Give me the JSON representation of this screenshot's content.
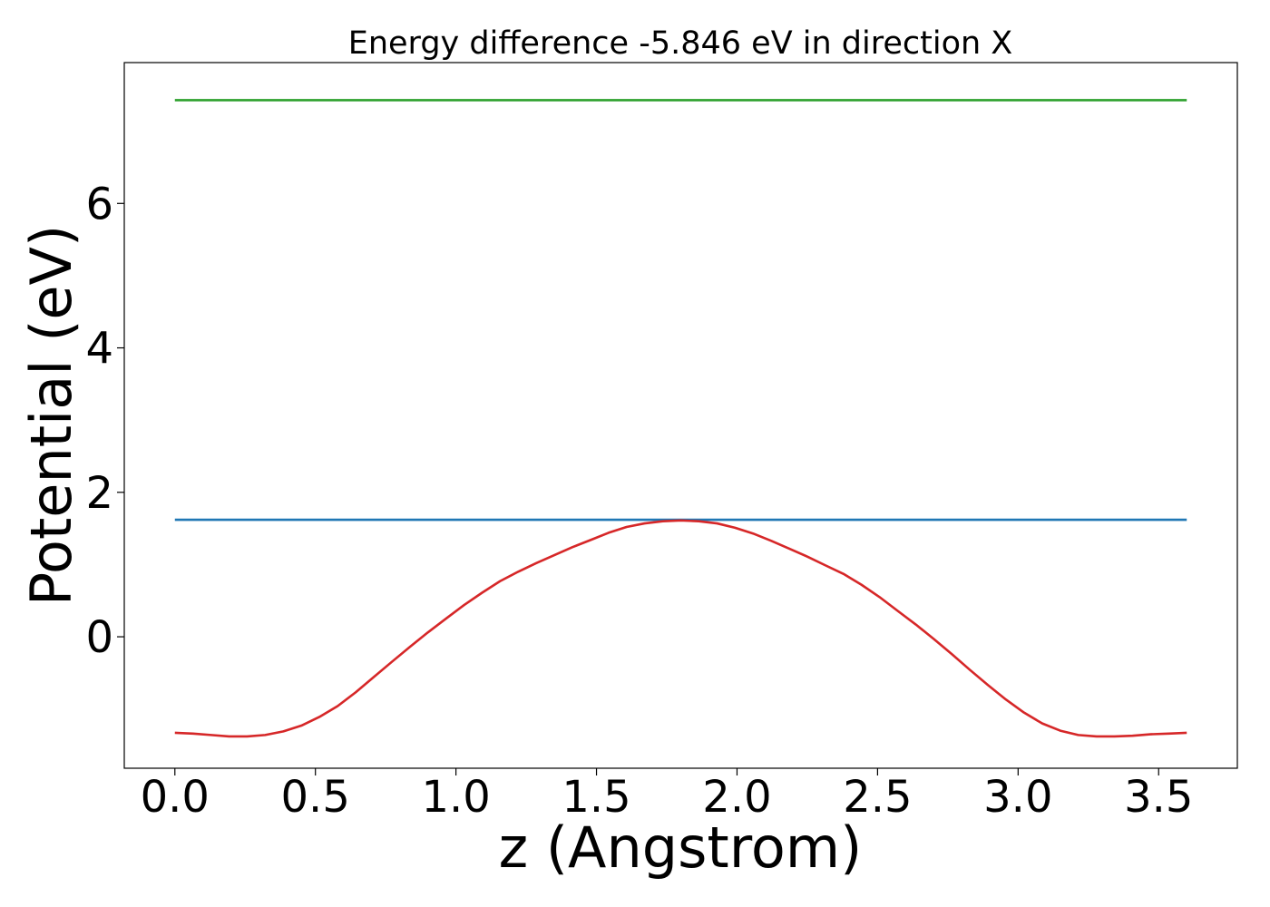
{
  "chart_data": {
    "type": "line",
    "title": "Energy difference -5.846 eV in direction X",
    "xlabel": "z (Angstrom)",
    "ylabel": "Potential (eV)",
    "xlim": [
      -0.18,
      3.78
    ],
    "ylim": [
      -1.82,
      7.95
    ],
    "xticks": [
      0.0,
      0.5,
      1.0,
      1.5,
      2.0,
      2.5,
      3.0,
      3.5
    ],
    "xtick_labels": [
      "0.0",
      "0.5",
      "1.0",
      "1.5",
      "2.0",
      "2.5",
      "3.0",
      "3.5"
    ],
    "yticks": [
      0,
      2,
      4,
      6
    ],
    "ytick_labels": [
      "0",
      "2",
      "4",
      "6"
    ],
    "grid": false,
    "legend": "none",
    "series": [
      {
        "color": "#2ca02c",
        "x": [
          0.0,
          3.6
        ],
        "y": [
          7.43,
          7.43
        ]
      },
      {
        "color": "#1f77b4",
        "x": [
          0.0,
          3.6
        ],
        "y": [
          1.62,
          1.62
        ]
      },
      {
        "color": "#d62728",
        "x": [
          0.0,
          0.064,
          0.129,
          0.193,
          0.257,
          0.321,
          0.386,
          0.45,
          0.514,
          0.579,
          0.643,
          0.707,
          0.771,
          0.836,
          0.9,
          0.964,
          1.029,
          1.093,
          1.157,
          1.221,
          1.286,
          1.35,
          1.414,
          1.479,
          1.543,
          1.607,
          1.671,
          1.736,
          1.8,
          1.864,
          1.929,
          1.993,
          2.057,
          2.121,
          2.186,
          2.25,
          2.314,
          2.379,
          2.443,
          2.507,
          2.571,
          2.636,
          2.7,
          2.764,
          2.829,
          2.893,
          2.957,
          3.021,
          3.086,
          3.15,
          3.214,
          3.279,
          3.343,
          3.407,
          3.471,
          3.536,
          3.6
        ],
        "y": [
          -1.33,
          -1.34,
          -1.36,
          -1.38,
          -1.38,
          -1.36,
          -1.31,
          -1.23,
          -1.11,
          -0.96,
          -0.77,
          -0.56,
          -0.35,
          -0.14,
          0.06,
          0.25,
          0.44,
          0.61,
          0.77,
          0.9,
          1.02,
          1.13,
          1.24,
          1.34,
          1.44,
          1.52,
          1.57,
          1.6,
          1.61,
          1.6,
          1.57,
          1.51,
          1.43,
          1.33,
          1.22,
          1.11,
          0.99,
          0.87,
          0.72,
          0.55,
          0.36,
          0.17,
          -0.03,
          -0.24,
          -0.46,
          -0.67,
          -0.87,
          -1.05,
          -1.2,
          -1.3,
          -1.36,
          -1.38,
          -1.38,
          -1.37,
          -1.35,
          -1.34,
          -1.33
        ]
      }
    ]
  }
}
